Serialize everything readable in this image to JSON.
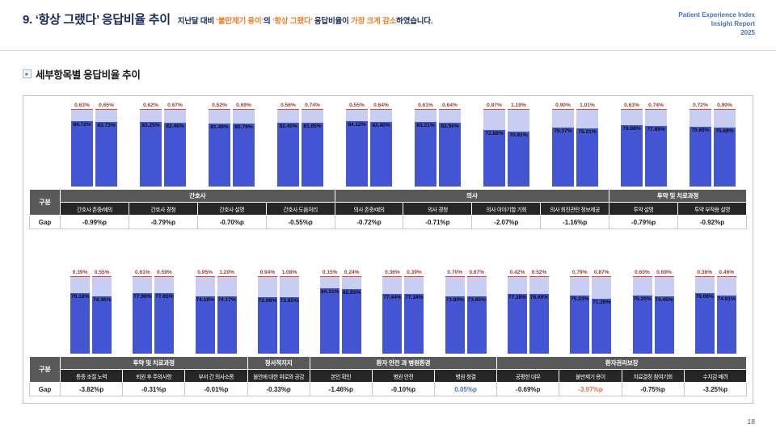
{
  "header": {
    "title": "9. ‘항상 그랬다’ 응답비율 추이",
    "subtitle_parts": [
      {
        "text": "지난달 대비 ",
        "highlight": false
      },
      {
        "text": "‘불만제기 용이’",
        "highlight": true
      },
      {
        "text": "의 ",
        "highlight": false
      },
      {
        "text": "‘항상 그랬다’",
        "highlight": true
      },
      {
        "text": " 응답비율이 ",
        "highlight": false
      },
      {
        "text": "가장 크게 감소",
        "highlight": true
      },
      {
        "text": "하였습니다.",
        "highlight": false
      }
    ],
    "brand": [
      "Patient Experience Index",
      "Insight Report",
      "2025"
    ]
  },
  "section": {
    "title": "세부항목별 응답비율 추이"
  },
  "icons": {
    "section_bullet": "▸"
  },
  "table": {
    "row_header": "구분",
    "gap_label": "Gap"
  },
  "page_number": "18",
  "colors": {
    "title_navy": "#1b2a5b",
    "highlight_orange": "#f07e26",
    "brand_blue": "#4472c4",
    "bar_main": "#4455d4",
    "bar_rest": "#c7cef2",
    "bar_cap": "#e0483e",
    "cap_label": "#a43b31",
    "group_header_bg": "#595959",
    "item_header_bg": "#262626",
    "gap_positive_blue": "#4472c4",
    "gap_highlight_orange": "#ed6a3c"
  },
  "chart_data": [
    {
      "type": "bar",
      "stacked": true,
      "ylim": [
        0,
        100
      ],
      "unit": "%",
      "legend": "none",
      "group_headers": [
        {
          "label": "간호사",
          "span": 4
        },
        {
          "label": "의사",
          "span": 4
        },
        {
          "label": "투약 및 치료과정",
          "span": 2
        }
      ],
      "categories": [
        "간호사 존중/예의",
        "간호사 경청",
        "간호사 설명",
        "간호사 도움처리",
        "의사 존중/예의",
        "의사 경청",
        "의사 이야기할 기회",
        "의사 회진관련 정보제공",
        "투약 설명",
        "투약 부작용 설명"
      ],
      "series": [
        {
          "name": "left-bar-main",
          "values": [
            84.72,
            83.25,
            81.49,
            82.4,
            84.12,
            83.21,
            72.88,
            76.37,
            78.68,
            76.6
          ]
        },
        {
          "name": "left-bar-top",
          "values": [
            0.63,
            0.62,
            0.52,
            0.56,
            0.55,
            0.61,
            0.87,
            0.9,
            0.63,
            0.72
          ]
        },
        {
          "name": "right-bar-main",
          "values": [
            83.73,
            82.46,
            80.79,
            81.85,
            83.4,
            82.5,
            70.81,
            75.21,
            77.89,
            75.68
          ]
        },
        {
          "name": "right-bar-top",
          "values": [
            0.65,
            0.67,
            0.69,
            0.74,
            0.64,
            0.64,
            1.19,
            1.01,
            0.74,
            0.9
          ]
        }
      ],
      "gap_values": [
        "-0.99%p",
        "-0.79%p",
        "-0.70%p",
        "-0.55%p",
        "-0.72%p",
        "-0.71%p",
        "-2.07%p",
        "-1.16%p",
        "-0.79%p",
        "-0.92%p"
      ],
      "gap_colors": [
        null,
        null,
        null,
        null,
        null,
        null,
        null,
        null,
        null,
        null
      ]
    },
    {
      "type": "bar",
      "stacked": true,
      "ylim": [
        0,
        100
      ],
      "unit": "%",
      "legend": "none",
      "group_headers": [
        {
          "label": "투약 및 치료과정",
          "span": 3
        },
        {
          "label": "정서적지지",
          "span": 1
        },
        {
          "label": "환자 안전 과 병원환경",
          "span": 3
        },
        {
          "label": "환자권리보장",
          "span": 4
        }
      ],
      "categories": [
        "통증 조절 노력",
        "퇴원 후 주의사항",
        "부서 간 의사소통",
        "불안에 대한 위로와 공감",
        "본인 확인",
        "병원 안전",
        "병원 청결",
        "공평한 대우",
        "불만제기 용이",
        "치료결정 참여기회",
        "수치감 배려"
      ],
      "series": [
        {
          "name": "left-bar-main",
          "values": [
            78.18,
            77.96,
            74.18,
            72.98,
            84.31,
            77.44,
            73.8,
            77.38,
            75.23,
            75.2,
            78.06
          ]
        },
        {
          "name": "left-bar-top",
          "values": [
            0.39,
            0.61,
            0.95,
            0.94,
            0.15,
            0.36,
            0.7,
            0.42,
            0.79,
            0.6,
            0.36
          ]
        },
        {
          "name": "right-bar-main",
          "values": [
            74.36,
            77.65,
            74.17,
            72.65,
            82.85,
            77.34,
            73.85,
            76.69,
            71.26,
            74.45,
            74.81
          ]
        },
        {
          "name": "right-bar-top",
          "values": [
            0.55,
            0.59,
            1.2,
            1.08,
            0.24,
            0.39,
            0.67,
            0.52,
            0.87,
            0.69,
            0.46
          ]
        }
      ],
      "gap_values": [
        "-3.82%p",
        "-0.31%p",
        "-0.01%p",
        "-0.33%p",
        "-1.46%p",
        "-0.10%p",
        "0.05%p",
        "-0.69%p",
        "-3.97%p",
        "-0.75%p",
        "-3.25%p"
      ],
      "gap_colors": [
        null,
        null,
        null,
        null,
        null,
        null,
        "#4472c4",
        null,
        "#ed6a3c",
        null,
        null
      ]
    }
  ]
}
